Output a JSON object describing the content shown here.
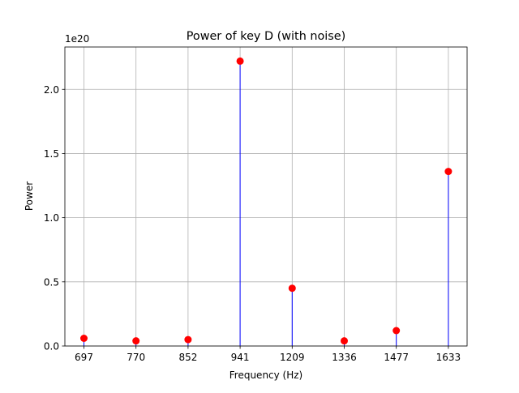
{
  "chart_data": {
    "type": "stem",
    "title": "Power of key D (with noise)",
    "xlabel": "Frequency (Hz)",
    "ylabel": "Power",
    "y_offset_label": "1e20",
    "categories": [
      "697",
      "770",
      "852",
      "941",
      "1209",
      "1336",
      "1477",
      "1633"
    ],
    "values": [
      0.06,
      0.04,
      0.05,
      2.22,
      0.45,
      0.04,
      0.12,
      1.36
    ],
    "value_scale": 1e+20,
    "ylim": [
      0,
      2.33
    ],
    "yticks": [
      0.0,
      0.5,
      1.0,
      1.5,
      2.0
    ],
    "ytick_labels": [
      "0.0",
      "0.5",
      "1.0",
      "1.5",
      "2.0"
    ],
    "grid": true,
    "marker_color": "#ff0000",
    "stem_color": "#0000ff"
  }
}
